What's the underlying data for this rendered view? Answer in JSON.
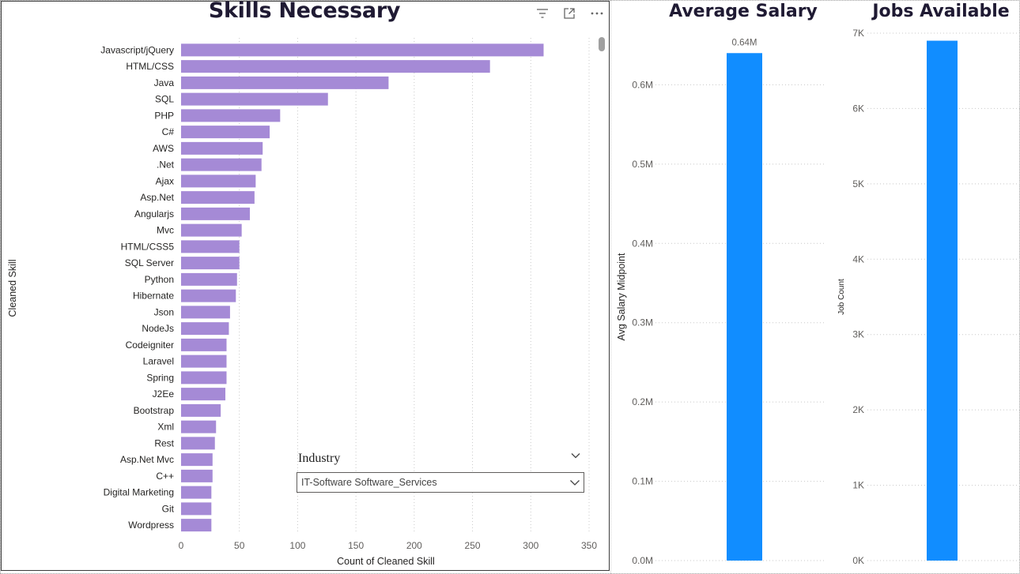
{
  "skills_chart": {
    "title": "Skills Necessary",
    "ylabel": "Cleaned Skill",
    "xlabel": "Count of Cleaned Skill",
    "bar_color": "#a58ad6"
  },
  "salary_chart": {
    "title": "Average Salary",
    "ylabel": "Avg Salary Midpoint",
    "data_label": "0.64M",
    "bar_color": "#118dff"
  },
  "jobs_chart": {
    "title": "Jobs Available",
    "ylabel": "Job Count",
    "bar_color": "#118dff"
  },
  "slicer": {
    "label": "Industry",
    "selected": "IT-Software Software_Services"
  },
  "icons": {
    "filter": "filter-icon",
    "focus": "focus-mode-icon",
    "more": "more-options-icon"
  },
  "chart_data": [
    {
      "type": "bar",
      "orientation": "horizontal",
      "title": "Skills Necessary",
      "xlabel": "Count of Cleaned Skill",
      "ylabel": "Cleaned Skill",
      "xlim": [
        0,
        350
      ],
      "xticks": [
        0,
        50,
        100,
        150,
        200,
        250,
        300,
        350
      ],
      "grid": true,
      "categories": [
        "Javascript/jQuery",
        "HTML/CSS",
        "Java",
        "SQL",
        "PHP",
        "C#",
        "AWS",
        ".Net",
        "Ajax",
        "Asp.Net",
        "Angularjs",
        "Mvc",
        "HTML/CSS5",
        "SQL Server",
        "Python",
        "Hibernate",
        "Json",
        "NodeJs",
        "Codeigniter",
        "Laravel",
        "Spring",
        "J2Ee",
        "Bootstrap",
        "Xml",
        "Rest",
        "Asp.Net Mvc",
        "C++",
        "Digital Marketing",
        "Git",
        "Wordpress"
      ],
      "values": [
        311,
        265,
        178,
        126,
        85,
        76,
        70,
        69,
        64,
        63,
        59,
        52,
        50,
        50,
        48,
        47,
        42,
        41,
        39,
        39,
        39,
        38,
        34,
        30,
        29,
        27,
        27,
        26,
        26,
        26
      ]
    },
    {
      "type": "bar",
      "title": "Average Salary",
      "ylabel": "Avg Salary Midpoint",
      "ylim": [
        0,
        0.7
      ],
      "yticks": [
        "0.0M",
        "0.1M",
        "0.2M",
        "0.3M",
        "0.4M",
        "0.5M",
        "0.6M"
      ],
      "values": [
        0.64
      ],
      "value_unit": "M",
      "data_label": "0.64M",
      "grid": true
    },
    {
      "type": "bar",
      "title": "Jobs Available",
      "ylabel": "Job Count",
      "ylim": [
        0,
        7000
      ],
      "yticks": [
        "0K",
        "1K",
        "2K",
        "3K",
        "4K",
        "5K",
        "6K",
        "7K"
      ],
      "values": [
        6900
      ],
      "grid": true
    }
  ]
}
